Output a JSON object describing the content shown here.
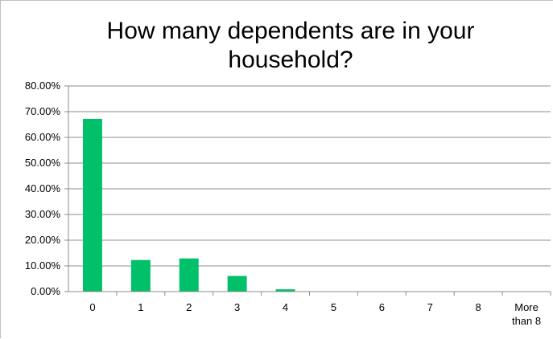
{
  "chart_data": {
    "type": "bar",
    "title": "How many dependents are in your household?",
    "categories": [
      "0",
      "1",
      "2",
      "3",
      "4",
      "5",
      "6",
      "7",
      "8",
      "More than 8"
    ],
    "values": [
      67.2,
      12.3,
      12.9,
      6.1,
      0.9,
      0,
      0,
      0,
      0,
      0
    ],
    "ylim": [
      0,
      80
    ],
    "yticks": [
      "0.00%",
      "10.00%",
      "20.00%",
      "30.00%",
      "40.00%",
      "50.00%",
      "60.00%",
      "70.00%",
      "80.00%"
    ],
    "grid": true,
    "legend": "none",
    "bar_color": "#00c06a",
    "xlabel": "",
    "ylabel": ""
  }
}
